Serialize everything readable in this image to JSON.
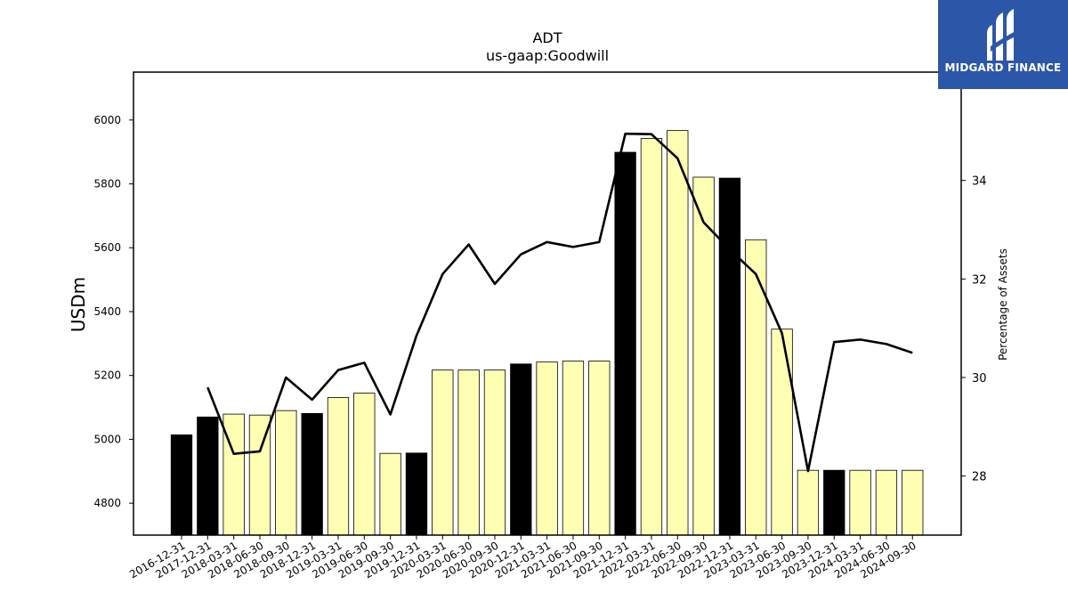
{
  "chart_data": {
    "type": "bar",
    "title": "ADT",
    "subtitle": "us-gaap:Goodwill",
    "ylabel": "USDm",
    "y2label": "Percentage of Assets",
    "ylim": [
      4700,
      6150
    ],
    "y2lim": [
      26.8,
      36.2
    ],
    "yticks": [
      4800,
      5000,
      5200,
      5400,
      5600,
      5800,
      6000
    ],
    "y2ticks": [
      28,
      30,
      32,
      34
    ],
    "categories": [
      "2016-12-31",
      "2017-12-31",
      "2018-03-31",
      "2018-06-30",
      "2018-09-30",
      "2018-12-31",
      "2019-03-31",
      "2019-06-30",
      "2019-09-30",
      "2019-12-31",
      "2020-03-31",
      "2020-06-30",
      "2020-09-30",
      "2020-12-31",
      "2021-03-31",
      "2021-06-30",
      "2021-09-30",
      "2021-12-31",
      "2022-03-31",
      "2022-06-30",
      "2022-09-30",
      "2022-12-31",
      "2023-03-31",
      "2023-06-30",
      "2023-09-30",
      "2023-12-31",
      "2024-03-31",
      "2024-06-30",
      "2024-09-30"
    ],
    "series": [
      {
        "type": "bar",
        "values": [
          5014,
          5070,
          5079,
          5076,
          5090,
          5081,
          5131,
          5145,
          4956,
          4957,
          5217,
          5217,
          5217,
          5236,
          5242,
          5245,
          5245,
          5899,
          5942,
          5967,
          5821,
          5818,
          5625,
          5345,
          4903,
          4903,
          4903,
          4903,
          4903
        ],
        "annual": [
          true,
          true,
          false,
          false,
          false,
          true,
          false,
          false,
          false,
          true,
          false,
          false,
          false,
          true,
          false,
          false,
          false,
          true,
          false,
          false,
          false,
          true,
          false,
          false,
          false,
          true,
          false,
          false,
          false
        ]
      },
      {
        "type": "line",
        "axis": "right",
        "values": [
          null,
          29.8,
          28.45,
          28.5,
          30.0,
          29.55,
          30.15,
          30.3,
          29.25,
          30.85,
          32.1,
          32.7,
          31.9,
          32.5,
          32.75,
          32.65,
          32.75,
          34.95,
          34.94,
          34.45,
          33.15,
          32.6,
          32.1,
          30.9,
          28.1,
          30.72,
          30.77,
          30.68,
          30.5
        ]
      }
    ],
    "colors": {
      "annual_bar": "#000000",
      "quarter_bar": "#ffffb3",
      "bar_edge": "#000000",
      "line": "#000000"
    },
    "grid": false
  },
  "logo": {
    "text": "MIDGARD FINANCE",
    "color": "#2c56a8"
  }
}
